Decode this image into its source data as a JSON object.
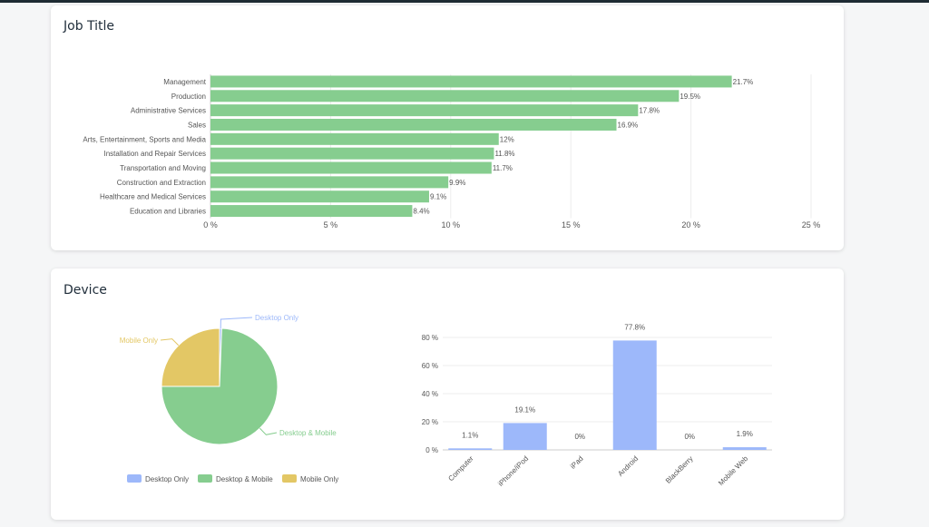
{
  "cards": {
    "job_title": {
      "title": "Job Title"
    },
    "device": {
      "title": "Device"
    }
  },
  "colors": {
    "green": "#86cd8f",
    "blue": "#9db8fa",
    "yellow": "#e3c765",
    "text": "#555555",
    "grid": "#ececec"
  },
  "chart_data": [
    {
      "id": "job-title-bar",
      "type": "bar",
      "orientation": "horizontal",
      "categories": [
        "Management",
        "Production",
        "Administrative Services",
        "Sales",
        "Arts, Entertainment, Sports and Media",
        "Installation and Repair Services",
        "Transportation and Moving",
        "Construction and Extraction",
        "Healthcare and Medical Services",
        "Education and Libraries"
      ],
      "values": [
        21.7,
        19.5,
        17.8,
        16.9,
        12,
        11.8,
        11.7,
        9.9,
        9.1,
        8.4
      ],
      "value_labels": [
        "21.7%",
        "19.5%",
        "17.8%",
        "16.9%",
        "12%",
        "11.8%",
        "11.7%",
        "9.9%",
        "9.1%",
        "8.4%"
      ],
      "xlim": [
        0,
        25
      ],
      "xticks": [
        "0 %",
        "5 %",
        "10 %",
        "15 %",
        "20 %",
        "25 %"
      ],
      "grid": true
    },
    {
      "id": "device-pie",
      "type": "pie",
      "categories": [
        "Desktop Only",
        "Desktop & Mobile",
        "Mobile Only"
      ],
      "values": [
        0.6,
        74.4,
        25
      ],
      "legend": [
        "Desktop Only",
        "Desktop & Mobile",
        "Mobile Only"
      ],
      "legend_position": "bottom"
    },
    {
      "id": "device-bar",
      "type": "bar",
      "categories": [
        "Computer",
        "iPhone/iPod",
        "iPad",
        "Android",
        "BlackBerry",
        "Mobile Web"
      ],
      "values": [
        1.1,
        19.1,
        0,
        77.8,
        0,
        1.9
      ],
      "value_labels": [
        "1.1%",
        "19.1%",
        "0%",
        "77.8%",
        "0%",
        "1.9%"
      ],
      "ylim": [
        0,
        80
      ],
      "yticks": [
        "0 %",
        "20 %",
        "40 %",
        "60 %",
        "80 %"
      ],
      "grid": true
    }
  ]
}
